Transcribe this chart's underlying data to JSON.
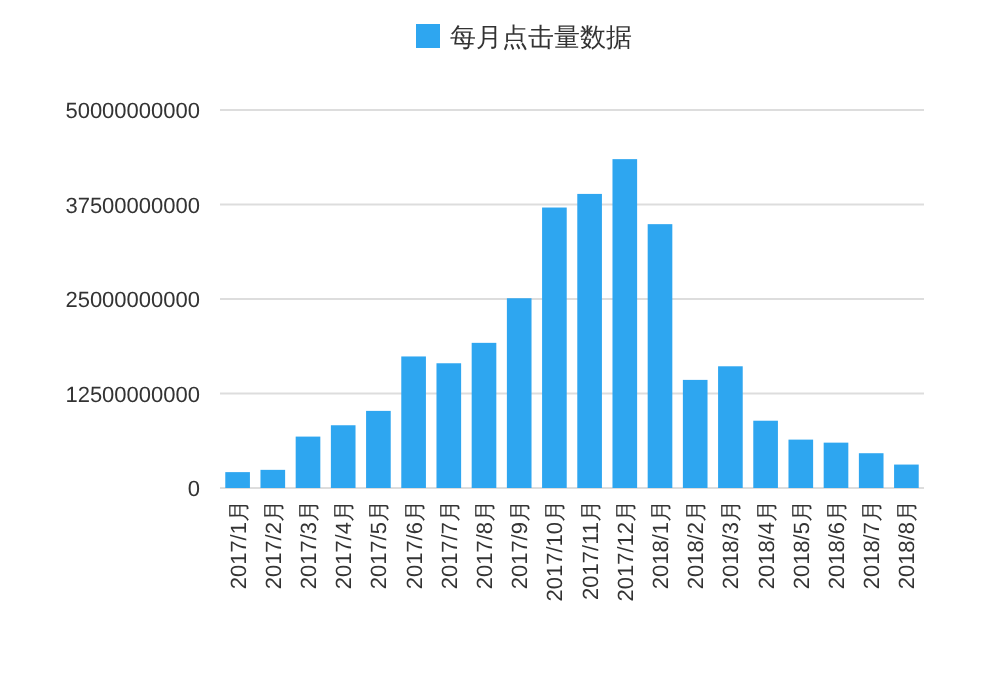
{
  "chart_data": {
    "type": "bar",
    "categories": [
      "2017/1月",
      "2017/2月",
      "2017/3月",
      "2017/4月",
      "2017/5月",
      "2017/6月",
      "2017/7月",
      "2017/8月",
      "2017/9月",
      "2017/10月",
      "2017/11月",
      "2017/12月",
      "2018/1月",
      "2018/2月",
      "2018/3月",
      "2018/4月",
      "2018/5月",
      "2018/6月",
      "2018/7月",
      "2018/8月"
    ],
    "series": [
      {
        "name": "每月点击量数据",
        "color": "#2ea6f0",
        "values": [
          2100000000,
          2400000000,
          6800000000,
          8300000000,
          10200000000,
          17400000000,
          16500000000,
          19200000000,
          25100000000,
          37100000000,
          38900000000,
          43500000000,
          34900000000,
          14300000000,
          16100000000,
          8900000000,
          6400000000,
          6000000000,
          4600000000,
          3100000000
        ]
      }
    ],
    "ylim": [
      0,
      50000000000
    ],
    "yticks": [
      0,
      12500000000,
      25000000000,
      37500000000,
      50000000000
    ],
    "grid": "y",
    "legend": "top"
  }
}
